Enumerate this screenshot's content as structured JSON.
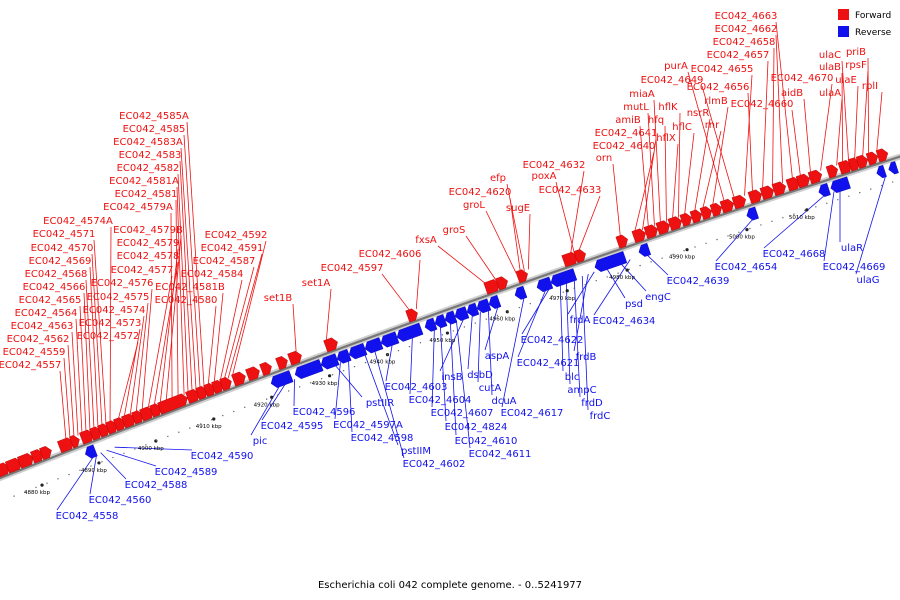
{
  "caption": "Escherichia coli 042 complete genome. - 0..5241977",
  "legend": [
    {
      "label": "Forward",
      "color": "#ee1111"
    },
    {
      "label": "Reverse",
      "color": "#1111ee"
    }
  ],
  "colors": {
    "forward": "#ee1111",
    "reverse": "#1111ee",
    "backbone": "#777777"
  },
  "ticks": [
    "4880 kbp",
    "4890 kbp",
    "4900 kbp",
    "4910 kbp",
    "4920 kbp",
    "4930 kbp",
    "4940 kbp",
    "4950 kbp",
    "4960 kbp",
    "4970 kbp",
    "4980 kbp",
    "4990 kbp",
    "5000 kbp",
    "5010 kbp"
  ],
  "forward_labels": [
    "EC042_4557",
    "EC042_4559",
    "EC042_4562",
    "EC042_4563",
    "EC042_4564",
    "EC042_4565",
    "EC042_4566",
    "EC042_4568",
    "EC042_4569",
    "EC042_4570",
    "EC042_4571",
    "EC042_4574A",
    "EC042_4572",
    "EC042_4573",
    "EC042_4574",
    "EC042_4575",
    "EC042_4576",
    "EC042_4577",
    "EC042_4578",
    "EC042_4579",
    "EC042_4579B",
    "EC042_4579A",
    "EC042_4581",
    "EC042_4581A",
    "EC042_4582",
    "EC042_4583",
    "EC042_4583A",
    "EC042_4585",
    "EC042_4585A",
    "EC042_4580",
    "EC042_4581B",
    "EC042_4584",
    "EC042_4587",
    "EC042_4591",
    "EC042_4592",
    "set1B",
    "set1A",
    "EC042_4597",
    "EC042_4606",
    "fxsA",
    "groS",
    "groL",
    "EC042_4620",
    "efp",
    "sugE",
    "EC042_4632",
    "poxA",
    "EC042_4633",
    "orn",
    "EC042_4640",
    "EC042_4641",
    "amiB",
    "mutL",
    "miaA",
    "hfq",
    "hflX",
    "hflK",
    "hflC",
    "nsrR",
    "rnr",
    "rlmB",
    "purA",
    "EC042_4649",
    "EC042_4655",
    "EC042_4656",
    "EC042_4657",
    "EC042_4658",
    "EC042_4662",
    "EC042_4663",
    "EC042_4660",
    "aidB",
    "EC042_4670",
    "ulaA",
    "ulaB",
    "ulaC",
    "ulaE",
    "rpsF",
    "priB",
    "rplI"
  ],
  "reverse_labels": [
    "EC042_4558",
    "EC042_4560",
    "EC042_4588",
    "EC042_4589",
    "EC042_4590",
    "pic",
    "EC042_4595",
    "EC042_4596",
    "pstIIR",
    "EC042_4597A",
    "EC042_4598",
    "pstIIM",
    "EC042_4602",
    "EC042_4603",
    "EC042_4604",
    "EC042_4607",
    "EC042_4824",
    "EC042_4610",
    "EC042_4611",
    "insB",
    "dsbD",
    "cutA",
    "dcuA",
    "aspA",
    "EC042_4617",
    "EC042_4621",
    "EC042_4622",
    "blc",
    "ampC",
    "frdD",
    "frdC",
    "frdB",
    "frdA",
    "psd",
    "engC",
    "EC042_4634",
    "EC042_4639",
    "EC042_4654",
    "EC042_4668",
    "EC042_4669",
    "ulaR",
    "ulaG"
  ]
}
